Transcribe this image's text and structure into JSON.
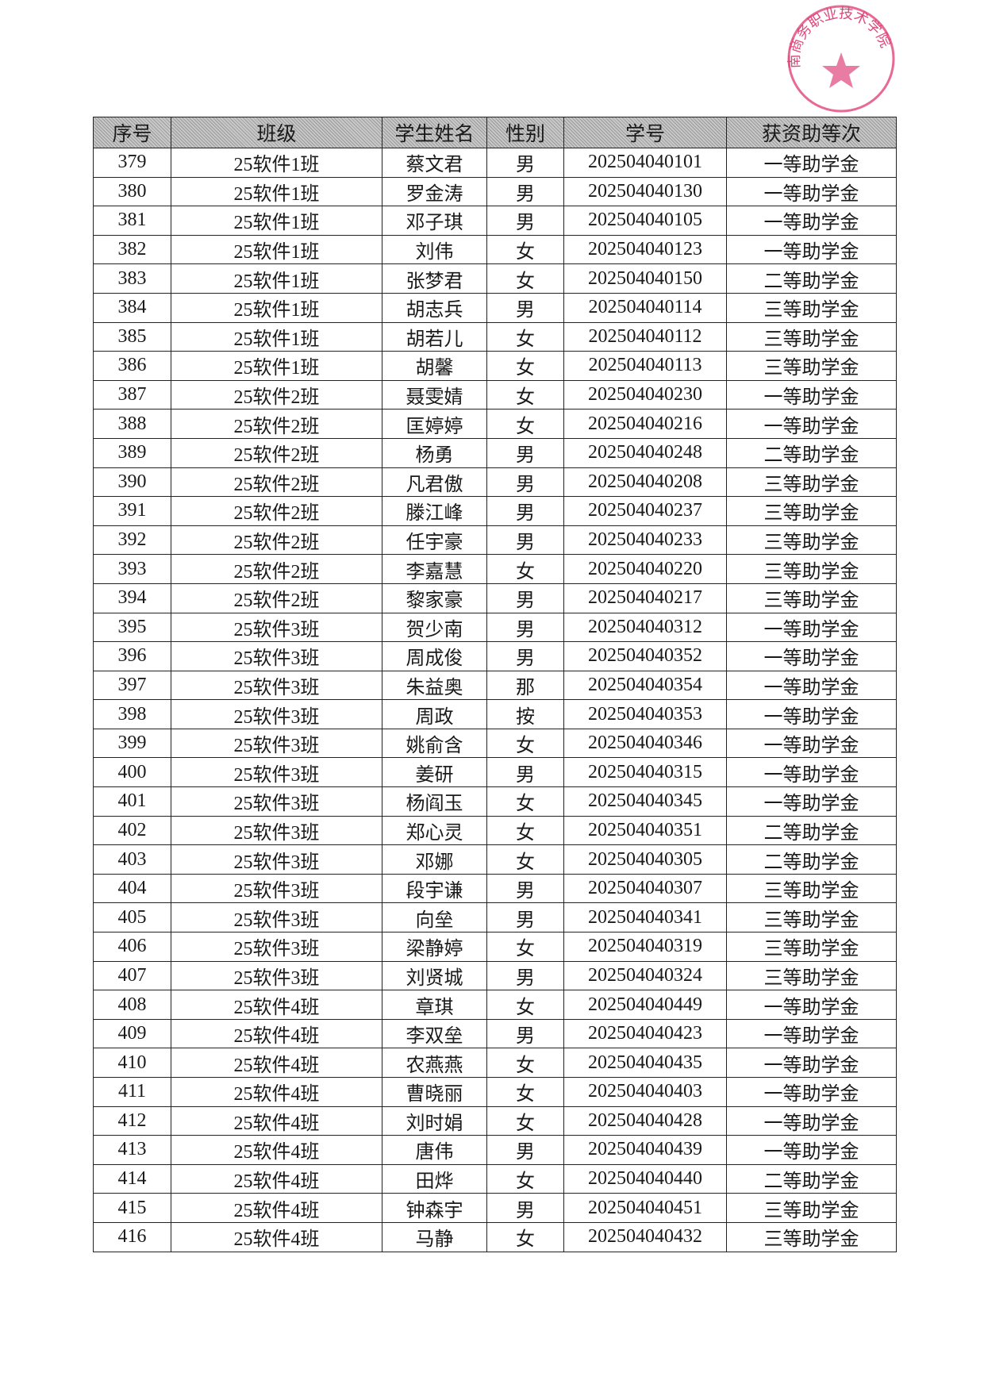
{
  "headers": [
    "序号",
    "班级",
    "学生姓名",
    "性别",
    "学号",
    "获资助等次"
  ],
  "rows": [
    [
      "379",
      "25软件1班",
      "蔡文君",
      "男",
      "202504040101",
      "一等助学金"
    ],
    [
      "380",
      "25软件1班",
      "罗金涛",
      "男",
      "202504040130",
      "一等助学金"
    ],
    [
      "381",
      "25软件1班",
      "邓子琪",
      "男",
      "202504040105",
      "一等助学金"
    ],
    [
      "382",
      "25软件1班",
      "刘伟",
      "女",
      "202504040123",
      "一等助学金"
    ],
    [
      "383",
      "25软件1班",
      "张梦君",
      "女",
      "202504040150",
      "二等助学金"
    ],
    [
      "384",
      "25软件1班",
      "胡志兵",
      "男",
      "202504040114",
      "三等助学金"
    ],
    [
      "385",
      "25软件1班",
      "胡若儿",
      "女",
      "202504040112",
      "三等助学金"
    ],
    [
      "386",
      "25软件1班",
      "胡馨",
      "女",
      "202504040113",
      "三等助学金"
    ],
    [
      "387",
      "25软件2班",
      "聂雯婧",
      "女",
      "202504040230",
      "一等助学金"
    ],
    [
      "388",
      "25软件2班",
      "匡婷婷",
      "女",
      "202504040216",
      "一等助学金"
    ],
    [
      "389",
      "25软件2班",
      "杨勇",
      "男",
      "202504040248",
      "二等助学金"
    ],
    [
      "390",
      "25软件2班",
      "凡君傲",
      "男",
      "202504040208",
      "三等助学金"
    ],
    [
      "391",
      "25软件2班",
      "滕江峰",
      "男",
      "202504040237",
      "三等助学金"
    ],
    [
      "392",
      "25软件2班",
      "任宇豪",
      "男",
      "202504040233",
      "三等助学金"
    ],
    [
      "393",
      "25软件2班",
      "李嘉慧",
      "女",
      "202504040220",
      "三等助学金"
    ],
    [
      "394",
      "25软件2班",
      "黎家豪",
      "男",
      "202504040217",
      "三等助学金"
    ],
    [
      "395",
      "25软件3班",
      "贺少南",
      "男",
      "202504040312",
      "一等助学金"
    ],
    [
      "396",
      "25软件3班",
      "周成俊",
      "男",
      "202504040352",
      "一等助学金"
    ],
    [
      "397",
      "25软件3班",
      "朱益奥",
      "那",
      "202504040354",
      "一等助学金"
    ],
    [
      "398",
      "25软件3班",
      "周政",
      "按",
      "202504040353",
      "一等助学金"
    ],
    [
      "399",
      "25软件3班",
      "姚俞含",
      "女",
      "202504040346",
      "一等助学金"
    ],
    [
      "400",
      "25软件3班",
      "姜研",
      "男",
      "202504040315",
      "一等助学金"
    ],
    [
      "401",
      "25软件3班",
      "杨阎玉",
      "女",
      "202504040345",
      "一等助学金"
    ],
    [
      "402",
      "25软件3班",
      "郑心灵",
      "女",
      "202504040351",
      "二等助学金"
    ],
    [
      "403",
      "25软件3班",
      "邓娜",
      "女",
      "202504040305",
      "二等助学金"
    ],
    [
      "404",
      "25软件3班",
      "段宇谦",
      "男",
      "202504040307",
      "三等助学金"
    ],
    [
      "405",
      "25软件3班",
      "向垒",
      "男",
      "202504040341",
      "三等助学金"
    ],
    [
      "406",
      "25软件3班",
      "梁静婷",
      "女",
      "202504040319",
      "三等助学金"
    ],
    [
      "407",
      "25软件3班",
      "刘贤城",
      "男",
      "202504040324",
      "三等助学金"
    ],
    [
      "408",
      "25软件4班",
      "章琪",
      "女",
      "202504040449",
      "一等助学金"
    ],
    [
      "409",
      "25软件4班",
      "李双垒",
      "男",
      "202504040423",
      "一等助学金"
    ],
    [
      "410",
      "25软件4班",
      "农燕燕",
      "女",
      "202504040435",
      "一等助学金"
    ],
    [
      "411",
      "25软件4班",
      "曹晓丽",
      "女",
      "202504040403",
      "一等助学金"
    ],
    [
      "412",
      "25软件4班",
      "刘时娟",
      "女",
      "202504040428",
      "一等助学金"
    ],
    [
      "413",
      "25软件4班",
      "唐伟",
      "男",
      "202504040439",
      "一等助学金"
    ],
    [
      "414",
      "25软件4班",
      "田烨",
      "女",
      "202504040440",
      "二等助学金"
    ],
    [
      "415",
      "25软件4班",
      "钟森宇",
      "男",
      "202504040451",
      "三等助学金"
    ],
    [
      "416",
      "25软件4班",
      "马静",
      "女",
      "202504040432",
      "三等助学金"
    ]
  ],
  "stamp": {
    "text": "南商务职业技术学院",
    "color": "#e0457a"
  }
}
